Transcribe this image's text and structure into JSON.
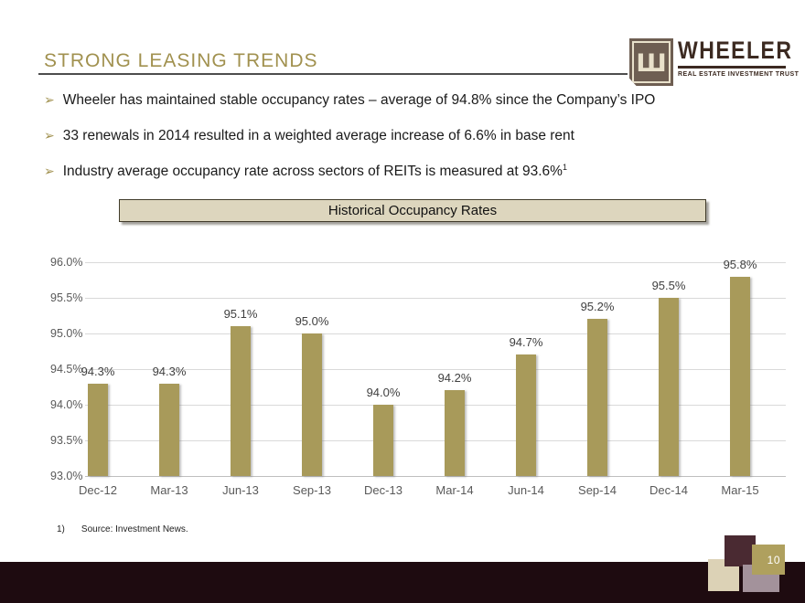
{
  "slide": {
    "title": "STRONG LEASING TRENDS",
    "bullet_glyph": "➢",
    "bullets": [
      {
        "text": "Wheeler has maintained stable occupancy rates – average of 94.8% since the Company’s IPO",
        "superscript": ""
      },
      {
        "text": "33 renewals in 2014 resulted in a weighted average increase of 6.6% in base rent",
        "superscript": ""
      },
      {
        "text": "Industry average occupancy rate across sectors of REITs is measured at 93.6%",
        "superscript": "1"
      }
    ],
    "footnote": {
      "index": "1)",
      "text": "Source: Investment News."
    },
    "page_number": "10"
  },
  "logo": {
    "name": "WHEELER",
    "tagline": "REAL ESTATE INVESTMENT TRUST",
    "mark_glyph": "Ш"
  },
  "chart_data": {
    "type": "bar",
    "title": "Historical Occupancy Rates",
    "categories": [
      "Dec-12",
      "Mar-13",
      "Jun-13",
      "Sep-13",
      "Dec-13",
      "Mar-14",
      "Jun-14",
      "Sep-14",
      "Dec-14",
      "Mar-15"
    ],
    "values": [
      94.3,
      94.3,
      95.1,
      95.0,
      94.0,
      94.2,
      94.7,
      95.2,
      95.5,
      95.8
    ],
    "labels": [
      "94.3%",
      "94.3%",
      "95.1%",
      "95.0%",
      "94.0%",
      "94.2%",
      "94.7%",
      "95.2%",
      "95.5%",
      "95.8%"
    ],
    "ylim": [
      93.0,
      96.0
    ],
    "ytick_step": 0.5,
    "yticks": [
      "96.0%",
      "95.5%",
      "95.0%",
      "94.5%",
      "94.0%",
      "93.5%",
      "93.0%"
    ],
    "xlabel": "",
    "ylabel": "",
    "grid": true,
    "legend": "none",
    "bar_color": "#A89A5A"
  },
  "colors": {
    "title_gold": "#A1914F",
    "body_text": "#1A1A1A",
    "bar_gold": "#A89A5A",
    "chart_title_fill": "#DDD6BE",
    "chart_title_border": "#403B2A",
    "gridline": "#D9D9D9",
    "axis_text": "#595959",
    "bottom_band": "#1E0B10",
    "square_maroon": "#4A2A32",
    "square_cream": "#DCD2B6",
    "square_mauve": "#A3929B",
    "square_gold": "#AFA05E",
    "logo_brown": "#3C2A21",
    "logo_mark_bg": "#6E5E52",
    "logo_mark_fg": "#E9E1CB"
  }
}
